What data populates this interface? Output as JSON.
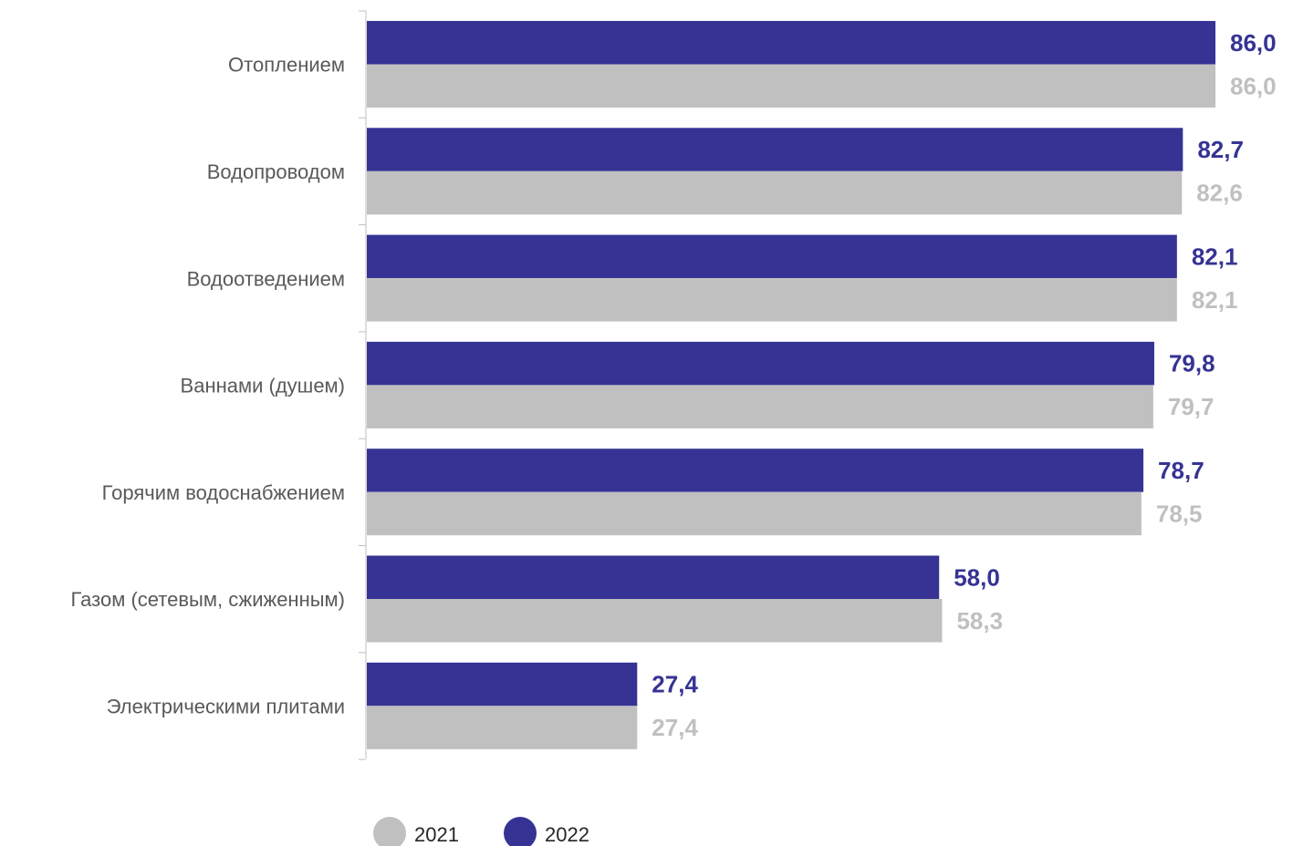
{
  "chart_data": {
    "type": "bar",
    "orientation": "horizontal",
    "categories": [
      "Отоплением",
      "Водопроводом",
      "Водоотведением",
      "Ваннами (душем)",
      "Горячим водоснабжением",
      "Газом (сетевым, сжиженным)",
      "Электрическими плитами"
    ],
    "series": [
      {
        "name": "2022",
        "color": "#363394",
        "values": [
          86.0,
          82.7,
          82.1,
          79.8,
          78.7,
          58.0,
          27.4
        ],
        "labels": [
          "86,0",
          "82,7",
          "82,1",
          "79,8",
          "78,7",
          "58,0",
          "27,4"
        ]
      },
      {
        "name": "2021",
        "color": "#c0c0c0",
        "values": [
          86.0,
          82.6,
          82.1,
          79.7,
          78.5,
          58.3,
          27.4
        ],
        "labels": [
          "86,0",
          "82,6",
          "82,1",
          "79,7",
          "78,5",
          "58,3",
          "27,4"
        ]
      }
    ],
    "xlim": [
      0,
      86.0
    ],
    "grid": false,
    "legend": {
      "placement": "bottom",
      "entries": [
        {
          "name": "2021",
          "color": "#c0c0c0"
        },
        {
          "name": "2022",
          "color": "#363394"
        }
      ]
    }
  }
}
